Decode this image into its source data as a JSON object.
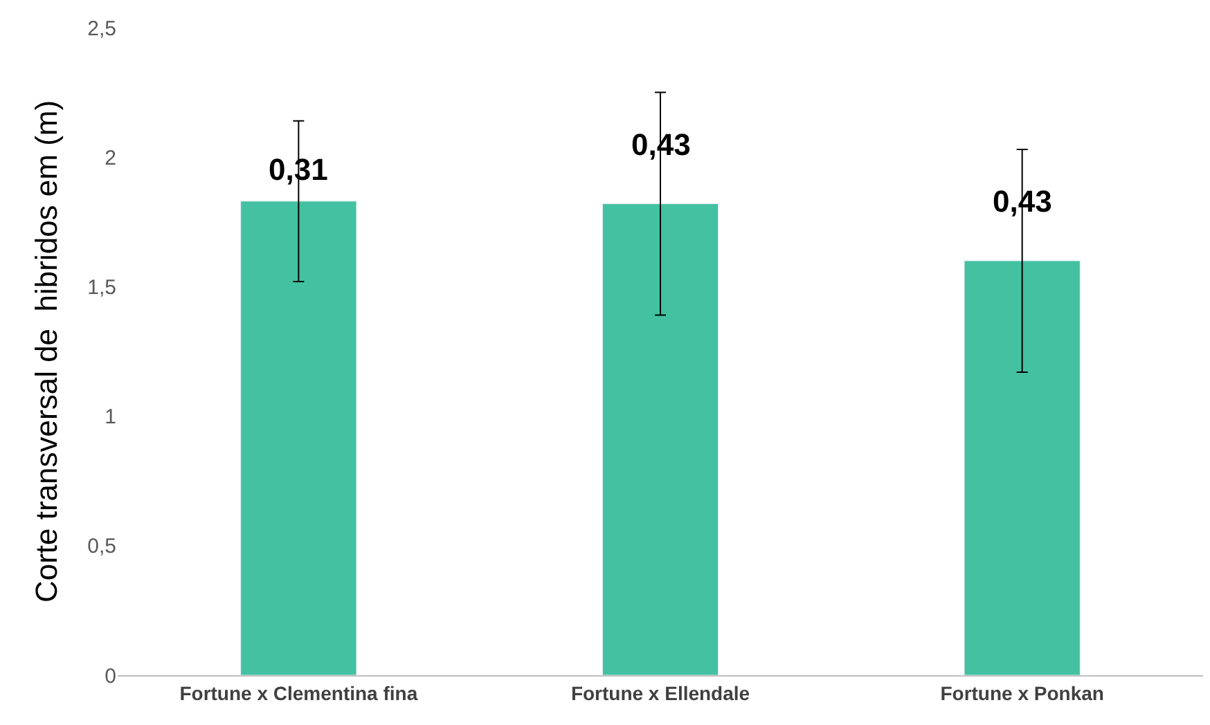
{
  "chart_data": {
    "type": "bar",
    "ylabel": "Corte transversal de  hibridos em (m)",
    "categories": [
      "Fortune x Clementina fina",
      "Fortune x Ellendale",
      "Fortune x Ponkan"
    ],
    "values": [
      1.83,
      1.82,
      1.6
    ],
    "errors": [
      0.31,
      0.43,
      0.43
    ],
    "annotations": [
      {
        "text": "0,31",
        "x": "Fortune x Clementina fina",
        "y": 1.95
      },
      {
        "text": "0,43",
        "x": "Fortune x Ellendale",
        "y": 2.05
      },
      {
        "text": "0,43",
        "x": "Fortune x Ponkan",
        "y": 1.83
      }
    ],
    "color": "#43c1a0",
    "ylim": [
      0,
      2.5
    ],
    "yticks": [
      {
        "value": 0,
        "label": "0"
      },
      {
        "value": 0.5,
        "label": "0,5"
      },
      {
        "value": 1,
        "label": "1"
      },
      {
        "value": 1.5,
        "label": "1,5"
      },
      {
        "value": 2,
        "label": "2"
      },
      {
        "value": 2.5,
        "label": "2,5"
      }
    ],
    "legend": false
  }
}
